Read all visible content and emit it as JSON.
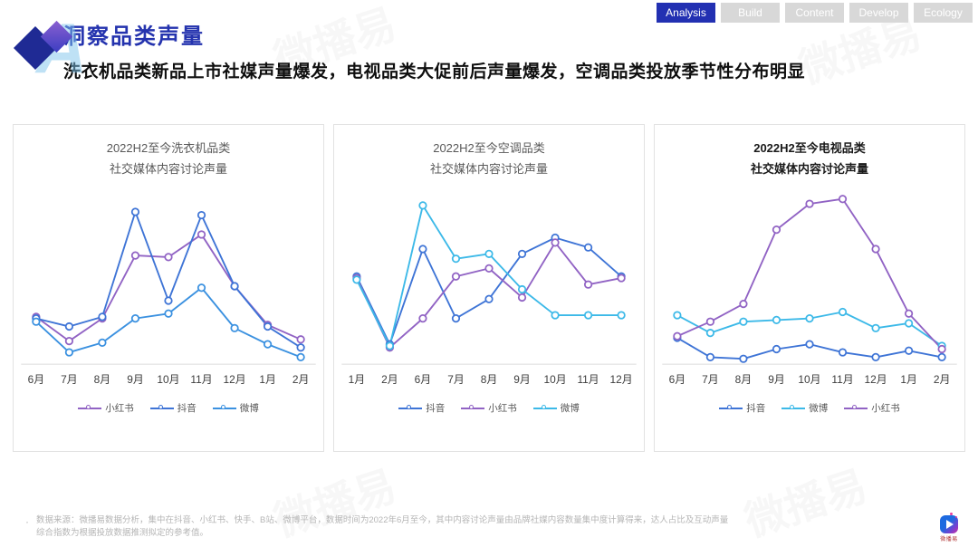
{
  "nav": {
    "tabs": [
      {
        "label": "Analysis",
        "active": true
      },
      {
        "label": "Build",
        "active": false
      },
      {
        "label": "Content",
        "active": false
      },
      {
        "label": "Develop",
        "active": false
      },
      {
        "label": "Ecology",
        "active": false
      }
    ]
  },
  "header": {
    "title": "洞察品类声量",
    "subtitle": "洗衣机品类新品上市社媒声量爆发，电视品类大促前后声量爆发，空调品类投放季节性分布明显"
  },
  "watermark": "微播易",
  "colors": {
    "accent_blue": "#2230b2",
    "title_blue": "#2433ae",
    "douyin": "#3e74d6",
    "xiaohongshu": "#9163c4",
    "weibo": "#3cb9e8",
    "weibo_chart1": "#3b91e0",
    "axis_line": "#dcdcdc"
  },
  "chart_data": [
    {
      "type": "line",
      "title_line1": "2022H2至今洗衣机品类",
      "title_line2": "社交媒体内容讨论声量",
      "title_bold": false,
      "ylim": [
        0,
        100
      ],
      "grid": false,
      "legend_position": "bottom",
      "categories": [
        "6月",
        "7月",
        "8月",
        "9月",
        "10月",
        "11月",
        "12月",
        "1月",
        "2月"
      ],
      "series": [
        {
          "name": "小红书",
          "color": "#9163c4",
          "values": [
            27,
            12,
            26,
            65,
            64,
            78,
            46,
            22,
            13
          ]
        },
        {
          "name": "抖音",
          "color": "#3e74d6",
          "values": [
            26,
            21,
            27,
            92,
            37,
            90,
            46,
            21,
            8
          ]
        },
        {
          "name": "微博",
          "color": "#3b91e0",
          "values": [
            24,
            5,
            11,
            26,
            29,
            45,
            20,
            10,
            2
          ]
        }
      ]
    },
    {
      "type": "line",
      "title_line1": "2022H2至今空调品类",
      "title_line2": "社交媒体内容讨论声量",
      "title_bold": false,
      "ylim": [
        0,
        100
      ],
      "grid": false,
      "legend_position": "bottom",
      "categories": [
        "1月",
        "2月",
        "6月",
        "7月",
        "8月",
        "9月",
        "10月",
        "11月",
        "12月"
      ],
      "series": [
        {
          "name": "抖音",
          "color": "#3e74d6",
          "values": [
            52,
            10,
            69,
            26,
            38,
            66,
            76,
            70,
            52
          ]
        },
        {
          "name": "小红书",
          "color": "#9163c4",
          "values": [
            51,
            8,
            26,
            52,
            57,
            39,
            73,
            47,
            51
          ]
        },
        {
          "name": "微博",
          "color": "#3cb9e8",
          "values": [
            50,
            9,
            96,
            63,
            66,
            44,
            28,
            28,
            28
          ]
        }
      ]
    },
    {
      "type": "line",
      "title_line1": "2022H2至今电视品类",
      "title_line2": "社交媒体内容讨论声量",
      "title_bold": true,
      "ylim": [
        0,
        100
      ],
      "grid": false,
      "legend_position": "bottom",
      "categories": [
        "6月",
        "7月",
        "8月",
        "9月",
        "10月",
        "11月",
        "12月",
        "1月",
        "2月"
      ],
      "series": [
        {
          "name": "抖音",
          "color": "#3e74d6",
          "values": [
            14,
            2,
            1,
            7,
            10,
            5,
            2,
            6,
            2
          ]
        },
        {
          "name": "微博",
          "color": "#3cb9e8",
          "values": [
            28,
            17,
            24,
            25,
            26,
            30,
            20,
            23,
            9
          ]
        },
        {
          "name": "小红书",
          "color": "#9163c4",
          "values": [
            15,
            24,
            35,
            81,
            97,
            100,
            69,
            29,
            7
          ]
        }
      ]
    }
  ],
  "footer": {
    "note_line1": "数据来源：微播易数据分析，集中在抖音、小红书、快手、B站、微博平台，数据时间为2022年6月至今，其中内容讨论声量由品牌社媒内容数量集中度计算得来，达人占比及互动声量",
    "note_line2": "综合指数为根据投放数据推测拟定的参考值。",
    "bullet": "·",
    "logo_text": "微播易"
  }
}
